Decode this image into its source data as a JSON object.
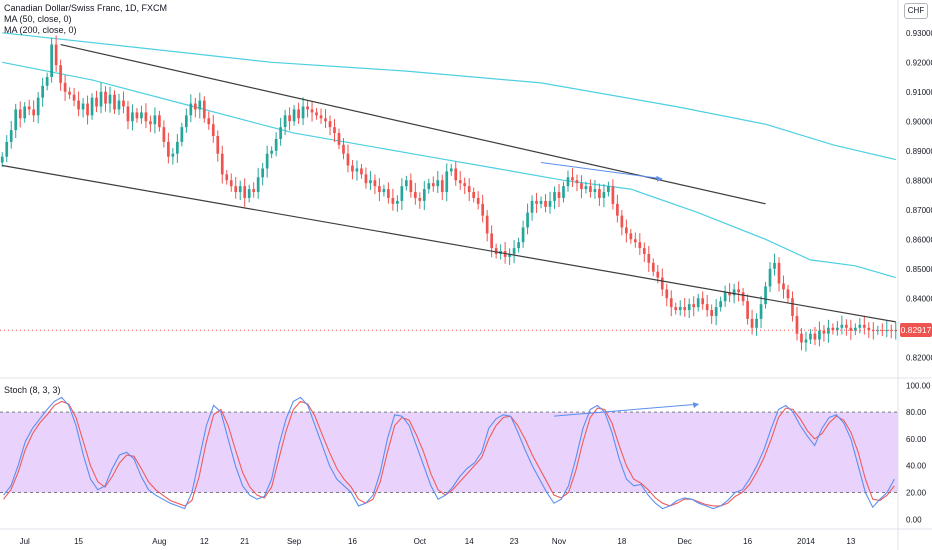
{
  "header": {
    "symbol_line": "Canadian Dollar/Swiss Franc, 1D, FXCM",
    "ma50_label": "MA (50, close, 0)",
    "ma200_label": "MA (200, close, 0)",
    "stoch_label": "Stoch (8, 3, 3)",
    "currency": "CHF",
    "last_price": "0.82917"
  },
  "colors": {
    "up": "#26a69a",
    "down": "#ef5350",
    "ma": "#4dd0e1",
    "stoch_k": "#5b8ff0",
    "stoch_d": "#f05b5b",
    "stoch_band": "#e1c4fb",
    "trendline": "#3d3d3d",
    "arrow": "#5b8ff0"
  },
  "chart_data": [
    {
      "type": "candlestick",
      "title": "Canadian Dollar/Swiss Franc, 1D, FXCM",
      "ylim": [
        0.815,
        0.935
      ],
      "y_ticks": [
        "0.93000",
        "0.92000",
        "0.91000",
        "0.90000",
        "0.89000",
        "0.88000",
        "0.87000",
        "0.86000",
        "0.85000",
        "0.84000",
        "0.83000",
        "0.82000"
      ],
      "y_tick_values": [
        0.93,
        0.92,
        0.91,
        0.9,
        0.89,
        0.88,
        0.87,
        0.86,
        0.85,
        0.84,
        0.83,
        0.82
      ],
      "x_ticks": [
        "Jul",
        "15",
        "Aug",
        "12",
        "21",
        "Sep",
        "16",
        "Oct",
        "14",
        "23",
        "Nov",
        "18",
        "Dec",
        "16",
        "2014",
        "13"
      ],
      "x_tick_bars": [
        5,
        17,
        35,
        45,
        54,
        65,
        78,
        93,
        104,
        114,
        124,
        138,
        152,
        166,
        179,
        189
      ],
      "n_bars": 200,
      "closes": [
        0.888,
        0.893,
        0.897,
        0.904,
        0.901,
        0.905,
        0.904,
        0.902,
        0.908,
        0.912,
        0.915,
        0.926,
        0.919,
        0.913,
        0.91,
        0.909,
        0.907,
        0.904,
        0.906,
        0.902,
        0.908,
        0.905,
        0.91,
        0.906,
        0.909,
        0.904,
        0.907,
        0.905,
        0.9,
        0.903,
        0.901,
        0.903,
        0.9,
        0.899,
        0.902,
        0.898,
        0.893,
        0.888,
        0.889,
        0.893,
        0.898,
        0.902,
        0.906,
        0.904,
        0.907,
        0.901,
        0.899,
        0.895,
        0.889,
        0.882,
        0.88,
        0.878,
        0.876,
        0.878,
        0.874,
        0.877,
        0.876,
        0.881,
        0.884,
        0.889,
        0.89,
        0.894,
        0.898,
        0.902,
        0.9,
        0.904,
        0.901,
        0.905,
        0.904,
        0.903,
        0.902,
        0.901,
        0.9,
        0.898,
        0.896,
        0.892,
        0.889,
        0.885,
        0.883,
        0.884,
        0.882,
        0.879,
        0.88,
        0.878,
        0.876,
        0.877,
        0.874,
        0.872,
        0.873,
        0.878,
        0.88,
        0.876,
        0.874,
        0.873,
        0.877,
        0.879,
        0.878,
        0.88,
        0.876,
        0.883,
        0.884,
        0.88,
        0.879,
        0.878,
        0.876,
        0.874,
        0.872,
        0.868,
        0.862,
        0.857,
        0.855,
        0.856,
        0.854,
        0.855,
        0.857,
        0.859,
        0.864,
        0.869,
        0.873,
        0.872,
        0.873,
        0.871,
        0.873,
        0.876,
        0.874,
        0.878,
        0.881,
        0.88,
        0.879,
        0.877,
        0.878,
        0.876,
        0.877,
        0.874,
        0.876,
        0.878,
        0.872,
        0.868,
        0.864,
        0.862,
        0.86,
        0.859,
        0.857,
        0.855,
        0.852,
        0.849,
        0.847,
        0.843,
        0.84,
        0.837,
        0.836,
        0.837,
        0.836,
        0.838,
        0.837,
        0.84,
        0.838,
        0.836,
        0.834,
        0.837,
        0.839,
        0.842,
        0.841,
        0.843,
        0.842,
        0.839,
        0.833,
        0.83,
        0.833,
        0.838,
        0.844,
        0.85,
        0.852,
        0.845,
        0.843,
        0.84,
        0.834,
        0.828,
        0.825,
        0.826,
        0.828,
        0.826,
        0.829,
        0.828,
        0.83,
        0.8292,
        0.83,
        0.831,
        0.83,
        0.829,
        0.83,
        0.831,
        0.83,
        0.8292,
        0.8291,
        0.8292,
        0.8291,
        0.8292,
        0.8291,
        0.8292
      ],
      "ma50_label": "MA (50, close, 0)",
      "ma200_label": "MA (200, close, 0)",
      "ma50": [
        [
          0,
          0.92
        ],
        [
          20,
          0.914
        ],
        [
          40,
          0.906
        ],
        [
          55,
          0.9
        ],
        [
          65,
          0.896
        ],
        [
          80,
          0.892
        ],
        [
          95,
          0.888
        ],
        [
          110,
          0.884
        ],
        [
          125,
          0.88
        ],
        [
          140,
          0.877
        ],
        [
          155,
          0.869
        ],
        [
          170,
          0.86
        ],
        [
          180,
          0.853
        ],
        [
          190,
          0.851
        ],
        [
          199,
          0.847
        ]
      ],
      "ma200": [
        [
          0,
          0.93
        ],
        [
          30,
          0.925
        ],
        [
          60,
          0.92
        ],
        [
          90,
          0.917
        ],
        [
          120,
          0.913
        ],
        [
          150,
          0.905
        ],
        [
          170,
          0.899
        ],
        [
          185,
          0.892
        ],
        [
          199,
          0.887
        ]
      ],
      "trendlines": [
        {
          "from": [
            13,
            0.926
          ],
          "to": [
            170,
            0.872
          ]
        },
        {
          "from": [
            0,
            0.885
          ],
          "to": [
            199,
            0.832
          ]
        }
      ]
    },
    {
      "type": "line",
      "title": "Stoch (8, 3, 3)",
      "ylim": [
        -8,
        104
      ],
      "y_ticks": [
        "100.00",
        "80.00",
        "60.00",
        "40.00",
        "20.00",
        "0.00"
      ],
      "y_tick_values": [
        100,
        80,
        60,
        40,
        20,
        0
      ],
      "band": [
        20,
        80
      ],
      "series": [
        {
          "name": "%K",
          "values": [
            18,
            25,
            40,
            58,
            68,
            75,
            82,
            88,
            91,
            85,
            70,
            48,
            30,
            22,
            25,
            38,
            48,
            50,
            45,
            32,
            22,
            18,
            15,
            12,
            10,
            8,
            20,
            45,
            70,
            85,
            80,
            60,
            40,
            25,
            18,
            15,
            17,
            30,
            55,
            75,
            88,
            91,
            85,
            70,
            55,
            40,
            30,
            25,
            20,
            10,
            12,
            18,
            35,
            60,
            78,
            77,
            70,
            55,
            40,
            25,
            15,
            18,
            24,
            32,
            38,
            42,
            50,
            68,
            75,
            78,
            77,
            65,
            52,
            40,
            30,
            20,
            12,
            15,
            25,
            45,
            68,
            82,
            85,
            80,
            65,
            45,
            30,
            25,
            26,
            18,
            12,
            8,
            10,
            14,
            16,
            15,
            12,
            10,
            8,
            10,
            14,
            20,
            22,
            30,
            40,
            52,
            68,
            82,
            85,
            80,
            70,
            62,
            55,
            68,
            76,
            78,
            72,
            60,
            40,
            20,
            9,
            15,
            20,
            30
          ]
        },
        {
          "name": "%D",
          "values": [
            15,
            22,
            35,
            52,
            64,
            72,
            78,
            85,
            88,
            86,
            76,
            58,
            40,
            28,
            24,
            32,
            42,
            48,
            47,
            38,
            28,
            22,
            18,
            14,
            12,
            10,
            14,
            32,
            58,
            78,
            82,
            70,
            52,
            35,
            24,
            18,
            16,
            24,
            45,
            66,
            82,
            88,
            86,
            77,
            63,
            50,
            38,
            30,
            24,
            15,
            12,
            15,
            28,
            50,
            70,
            76,
            74,
            63,
            50,
            34,
            22,
            18,
            22,
            28,
            34,
            40,
            46,
            60,
            70,
            76,
            77,
            70,
            60,
            48,
            38,
            28,
            18,
            16,
            20,
            36,
            58,
            76,
            83,
            82,
            72,
            55,
            40,
            30,
            27,
            22,
            16,
            12,
            10,
            12,
            15,
            15,
            13,
            11,
            10,
            10,
            12,
            17,
            20,
            26,
            35,
            46,
            60,
            76,
            83,
            82,
            75,
            66,
            60,
            64,
            72,
            77,
            74,
            65,
            50,
            30,
            15,
            14,
            18,
            25
          ]
        }
      ]
    }
  ]
}
